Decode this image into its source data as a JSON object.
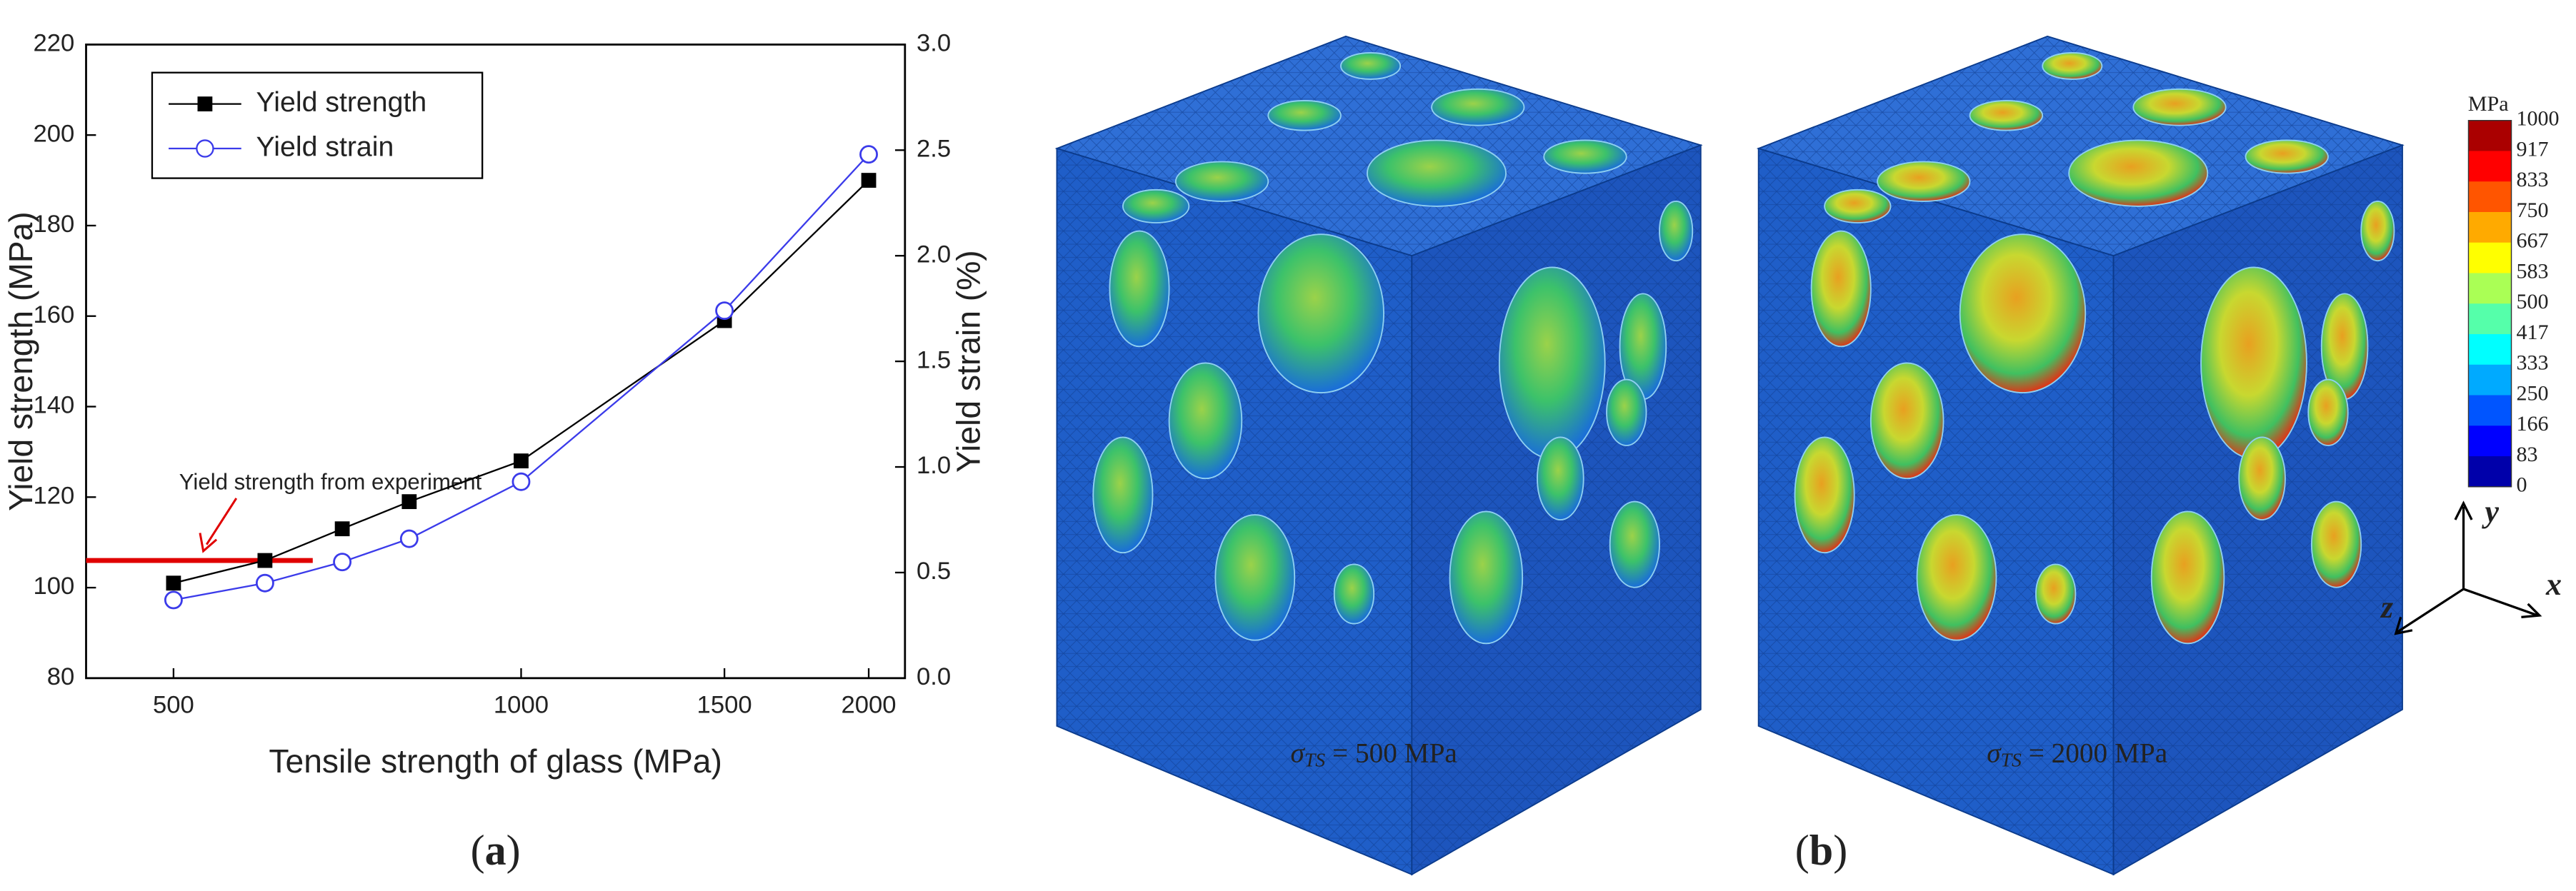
{
  "chart_data": {
    "type": "line",
    "x_scale": "log",
    "xlabel": "Tensile strength of glass (MPa)",
    "ylabel": "Yield strength (MPa)",
    "y2label": "Yield strain (%)",
    "x": [
      500,
      600,
      700,
      800,
      1000,
      1500,
      2000
    ],
    "series": [
      {
        "name": "Yield strength",
        "color": "#000000",
        "marker": "square",
        "values": [
          101,
          106,
          113,
          119,
          128,
          159,
          190
        ]
      },
      {
        "name": "Yield strain",
        "color": "#3b3bea",
        "marker": "circle",
        "axis": "y2",
        "values": [
          0.37,
          0.45,
          0.55,
          0.66,
          0.93,
          1.74,
          2.48
        ]
      }
    ],
    "xlim": [
      420,
      2150
    ],
    "xticks": [
      500,
      1000,
      1500,
      2000
    ],
    "ylim": [
      80,
      220
    ],
    "yticks": [
      80,
      100,
      120,
      140,
      160,
      180,
      200,
      220
    ],
    "y2lim": [
      0,
      3
    ],
    "y2ticks": [
      {
        "value": 0,
        "label": "0.0"
      },
      0.5,
      {
        "value": 1,
        "label": "1.0"
      },
      1.5,
      {
        "value": 2,
        "label": "2.0"
      },
      2.5,
      {
        "value": 3,
        "label": "3.0"
      }
    ],
    "reference_line": {
      "label": "Yield strength from experiment",
      "value": 106,
      "x": [
        420,
        660
      ],
      "color": "#e00000"
    },
    "legend": "upper left"
  },
  "panel_labels": [
    "a",
    "b"
  ],
  "captions": [
    {
      "symbol": "σ",
      "subscript": "TS",
      "text": " = 500 MPa"
    },
    {
      "symbol": "σ",
      "subscript": "TS",
      "text": " = 2000 MPa"
    }
  ],
  "colorbar": {
    "unit": "MPa",
    "ticks": [
      1000,
      917,
      833,
      750,
      667,
      583,
      500,
      417,
      333,
      250,
      166,
      83,
      0
    ]
  },
  "axes_triad": {
    "y": "y",
    "x": "x",
    "z": "z"
  }
}
